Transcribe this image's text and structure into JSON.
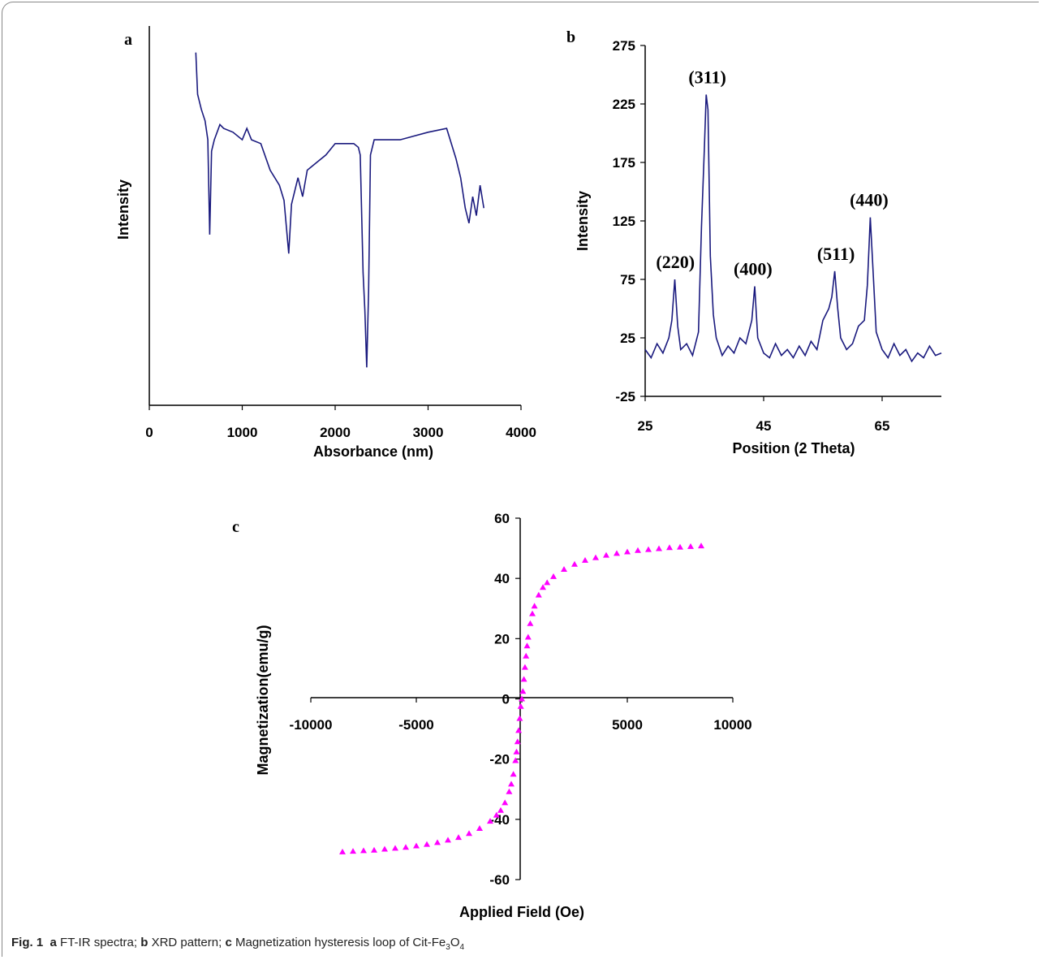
{
  "panel_labels": [
    "a",
    "b",
    "c"
  ],
  "caption": {
    "fig_label": "Fig. 1",
    "parts": [
      {
        "letter": "a",
        "text": "FT-IR spectra;"
      },
      {
        "letter": "b",
        "text": "XRD pattern;"
      },
      {
        "letter": "c",
        "text": "Magnetization hysteresis loop of Cit-Fe"
      }
    ],
    "formula_sub1": "3",
    "formula_mid": "O",
    "formula_sub2": "4"
  },
  "colors": {
    "line": "#1a1a7e",
    "marker": "#ff00ff",
    "axis": "#000000"
  },
  "chart_data": [
    {
      "type": "line",
      "panel": "a",
      "title": "",
      "xlabel": "Absorbance (nm)",
      "ylabel": "Intensity",
      "xlim": [
        0,
        4000
      ],
      "ylim": [
        0,
        100
      ],
      "xticks": [
        "0",
        "1000",
        "2000",
        "3000",
        "4000"
      ],
      "yticks_shown": false,
      "series": [
        {
          "x": [
            500,
            520,
            560,
            600,
            630,
            650,
            670,
            700,
            760,
            800,
            900,
            1000,
            1050,
            1100,
            1200,
            1300,
            1400,
            1450,
            1500,
            1530,
            1600,
            1650,
            1700,
            1800,
            1900,
            2000,
            2100,
            2200,
            2250,
            2270,
            2300,
            2320,
            2340,
            2360,
            2380,
            2420,
            2500,
            2700,
            3000,
            3200,
            3300,
            3350,
            3400,
            3440,
            3480,
            3520,
            3560,
            3600
          ],
          "y": [
            93,
            82,
            78,
            75,
            70,
            45,
            67,
            70,
            74,
            73,
            72,
            70,
            73,
            70,
            69,
            62,
            58,
            54,
            40,
            53,
            60,
            55,
            62,
            64,
            66,
            69,
            69,
            69,
            68,
            66,
            35,
            25,
            10,
            30,
            66,
            70,
            70,
            70,
            72,
            73,
            65,
            60,
            52,
            48,
            55,
            50,
            58,
            52
          ]
        }
      ]
    },
    {
      "type": "line",
      "panel": "b",
      "title": "",
      "xlabel": "Position (2 Theta)",
      "ylabel": "Intensity",
      "xlim": [
        25,
        75
      ],
      "ylim": [
        -25,
        275
      ],
      "xticks": [
        "25",
        "45",
        "65"
      ],
      "yticks": [
        "275",
        "225",
        "175",
        "125",
        "75",
        "25",
        "-25"
      ],
      "annotations": [
        {
          "text": "(220)",
          "x": 30.1,
          "y": 75
        },
        {
          "text": "(311)",
          "x": 35.5,
          "y": 233
        },
        {
          "text": "(400)",
          "x": 43.2,
          "y": 69
        },
        {
          "text": "(511)",
          "x": 57.2,
          "y": 82
        },
        {
          "text": "(440)",
          "x": 62.8,
          "y": 128
        }
      ],
      "series": [
        {
          "x": [
            25,
            26,
            27,
            28,
            29,
            29.5,
            30,
            30.5,
            31,
            32,
            33,
            34,
            34.5,
            35,
            35.3,
            35.6,
            36,
            36.5,
            37,
            38,
            39,
            40,
            41,
            42,
            43,
            43.5,
            44,
            45,
            46,
            47,
            48,
            49,
            50,
            51,
            52,
            53,
            54,
            55,
            56,
            56.5,
            57,
            57.5,
            58,
            59,
            60,
            61,
            62,
            62.5,
            63,
            63.5,
            64,
            65,
            66,
            67,
            68,
            69,
            70,
            71,
            72,
            73,
            74,
            75
          ],
          "y": [
            15,
            8,
            20,
            12,
            25,
            40,
            75,
            35,
            15,
            20,
            10,
            30,
            120,
            188,
            233,
            220,
            95,
            45,
            25,
            10,
            18,
            12,
            25,
            20,
            40,
            69,
            25,
            12,
            8,
            20,
            10,
            15,
            8,
            18,
            10,
            22,
            15,
            40,
            50,
            60,
            82,
            50,
            25,
            15,
            20,
            35,
            40,
            70,
            128,
            80,
            30,
            15,
            8,
            20,
            10,
            15,
            5,
            12,
            8,
            18,
            10,
            12
          ]
        }
      ]
    },
    {
      "type": "scatter",
      "panel": "c",
      "title": "",
      "xlabel": "Applied Field (Oe)",
      "ylabel": "Magnetization(emu/g)",
      "xlim": [
        -10000,
        10000
      ],
      "ylim": [
        -60,
        60
      ],
      "xticks": [
        "-10000",
        "-5000",
        "0",
        "5000",
        "10000"
      ],
      "yticks": [
        "60",
        "40",
        "20",
        "0",
        "-20",
        "-40",
        "-60"
      ],
      "marker": "triangle",
      "series": [
        {
          "x": [
            -8500,
            -8000,
            -7500,
            -7000,
            -6500,
            -6000,
            -5500,
            -5000,
            -4500,
            -4000,
            -3500,
            -3000,
            -2500,
            -2000,
            -1500,
            -1200,
            -1000,
            -800,
            -600,
            -500,
            -400,
            -300,
            -250,
            -200,
            -150,
            -100,
            -50,
            0,
            50,
            100,
            150,
            200,
            250,
            300,
            400,
            500,
            600,
            800,
            1000,
            1200,
            1500,
            2000,
            2500,
            3000,
            3500,
            4000,
            4500,
            5000,
            5500,
            6000,
            6500,
            7000,
            7500,
            8000,
            8500
          ],
          "y": [
            -50.8,
            -50.6,
            -50.4,
            -50.2,
            -49.9,
            -49.6,
            -49.3,
            -48.8,
            -48.3,
            -47.7,
            -46.9,
            -46.0,
            -44.7,
            -43.0,
            -40.6,
            -38.6,
            -37.0,
            -34.5,
            -30.8,
            -28.3,
            -25.0,
            -20.5,
            -17.6,
            -14.2,
            -10.5,
            -6.5,
            -2.5,
            0,
            2.5,
            6.5,
            10.5,
            14.2,
            17.6,
            20.5,
            25.0,
            28.3,
            30.8,
            34.5,
            37.0,
            38.6,
            40.6,
            43.0,
            44.7,
            46.0,
            46.9,
            47.7,
            48.3,
            48.8,
            49.3,
            49.6,
            49.9,
            50.2,
            50.4,
            50.6,
            50.8
          ]
        }
      ]
    }
  ]
}
